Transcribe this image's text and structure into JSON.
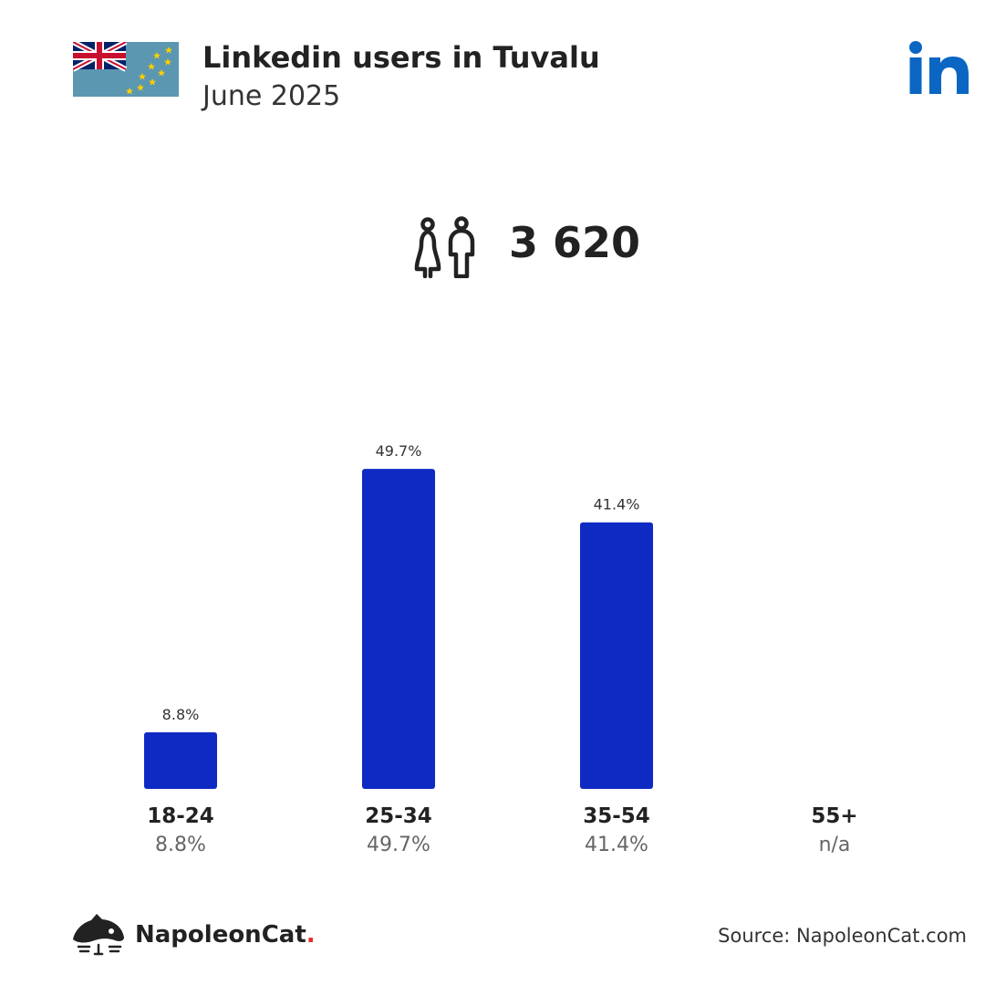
{
  "header": {
    "title": "Linkedin users in Tuvalu",
    "subtitle": "June 2025"
  },
  "summary": {
    "total_users": "3 620"
  },
  "icons": {
    "flag": "tuvalu-flag-icon",
    "linkedin": "linkedin-logo-icon",
    "users": "users-icon",
    "brand": "napoleoncat-logo-icon"
  },
  "colors": {
    "bar": "#0f2ac3",
    "linkedin": "#0a66c2",
    "flag_field": "#5b97b1",
    "flag_star": "#ffce00",
    "brand_dot": "#e0312d"
  },
  "chart_data": {
    "type": "bar",
    "categories": [
      "18-24",
      "25-34",
      "35-54",
      "55+"
    ],
    "values": [
      8.8,
      49.7,
      41.4,
      null
    ],
    "value_labels": [
      "8.8%",
      "49.7%",
      "41.4%",
      "n/a"
    ],
    "ylim": [
      0,
      55
    ],
    "grid": false,
    "legend": "none"
  },
  "footer": {
    "brand_name": "NapoleonCat",
    "brand_dot": ".",
    "source": "Source: NapoleonCat.com"
  }
}
